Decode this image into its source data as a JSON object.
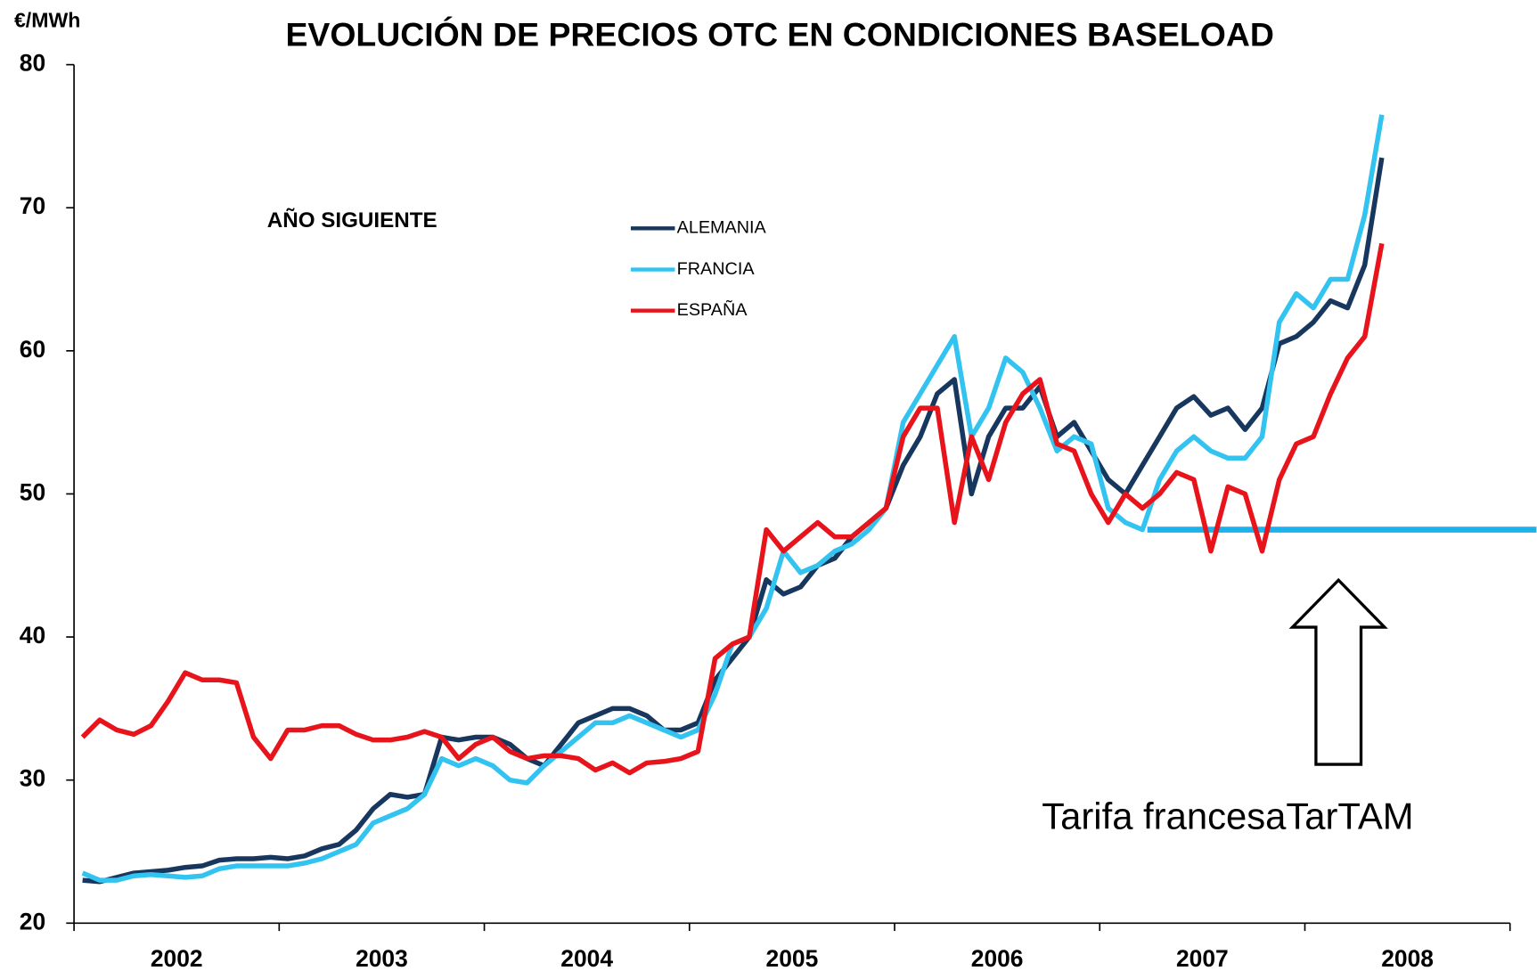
{
  "chart_data": {
    "type": "line",
    "title": "EVOLUCIÓN DE PRECIOS OTC EN CONDICIONES BASELOAD",
    "subtitle": "AÑO SIGUIENTE",
    "y_label": "€/MWh",
    "categories": [
      null,
      null,
      null,
      null,
      null,
      "2002",
      null,
      null,
      null,
      null,
      null,
      null,
      null,
      null,
      null,
      null,
      null,
      "2003",
      null,
      null,
      null,
      null,
      null,
      null,
      null,
      null,
      null,
      null,
      null,
      "2004",
      null,
      null,
      null,
      null,
      null,
      null,
      null,
      null,
      null,
      null,
      null,
      "2005",
      null,
      null,
      null,
      null,
      null,
      null,
      null,
      null,
      null,
      null,
      null,
      "2006",
      null,
      null,
      null,
      null,
      null,
      null,
      null,
      null,
      null,
      null,
      null,
      "2007",
      null,
      null,
      null,
      null,
      null,
      null,
      null,
      null,
      null,
      null,
      null,
      "2008",
      null,
      null,
      null,
      null,
      null,
      null
    ],
    "series": [
      {
        "name": "ALEMANIA",
        "color": "#17375e",
        "values": [
          23,
          22.9,
          23.2,
          23.5,
          23.6,
          23.7,
          23.9,
          24,
          24.4,
          24.5,
          24.5,
          24.6,
          24.5,
          24.7,
          25.2,
          25.5,
          26.5,
          28,
          29,
          28.8,
          29,
          33,
          32.8,
          33,
          33,
          32.5,
          31.5,
          31,
          32.5,
          34,
          34.5,
          35,
          35,
          34.5,
          33.5,
          33.5,
          34,
          37,
          38.5,
          40,
          44,
          43,
          43.5,
          45,
          45.5,
          47,
          48,
          49,
          52,
          54,
          57,
          58,
          50,
          54,
          56,
          56,
          57.5,
          54,
          55,
          53,
          51,
          50,
          52,
          54,
          56,
          56.8,
          55.5,
          56,
          54.5,
          56,
          60.5,
          61,
          62,
          63.5,
          63,
          66,
          73.5,
          null,
          null,
          null,
          null,
          null,
          null,
          null
        ]
      },
      {
        "name": "FRANCIA",
        "color": "#33c3f0",
        "values": [
          23.5,
          23,
          23,
          23.3,
          23.4,
          23.3,
          23.2,
          23.3,
          23.8,
          24,
          24,
          24,
          24,
          24.2,
          24.5,
          25,
          25.5,
          27,
          27.5,
          28,
          29,
          31.5,
          31,
          31.5,
          31,
          30,
          29.8,
          31,
          32,
          33,
          34,
          34,
          34.5,
          34,
          33.5,
          33,
          33.5,
          36,
          39.5,
          40,
          42,
          46,
          44.5,
          45,
          46,
          46.5,
          47.5,
          49,
          55,
          57,
          59,
          61,
          54,
          56,
          59.5,
          58.5,
          56,
          53,
          54,
          53.5,
          49,
          48,
          47.5,
          51,
          53,
          54,
          53,
          52.5,
          52.5,
          54,
          62,
          64,
          63,
          65,
          65,
          69.5,
          76.5,
          null,
          null,
          null,
          null,
          null,
          null,
          null
        ]
      },
      {
        "name": "ESPAÑA",
        "color": "#e8141c",
        "values": [
          33,
          34.2,
          33.5,
          33.2,
          33.8,
          35.5,
          37.5,
          37,
          37,
          36.8,
          33,
          31.5,
          33.5,
          33.5,
          33.8,
          33.8,
          33.2,
          32.8,
          32.8,
          33,
          33.4,
          33,
          31.5,
          32.5,
          33,
          32,
          31.5,
          31.7,
          31.7,
          31.5,
          30.7,
          31.2,
          30.5,
          31.2,
          31.3,
          31.5,
          32,
          38.5,
          39.5,
          40,
          47.5,
          46,
          47,
          48,
          47,
          47,
          48,
          49,
          54,
          56,
          56,
          48,
          54,
          51,
          55,
          57,
          58,
          53.5,
          53,
          50,
          48,
          50,
          49,
          50,
          51.5,
          51,
          46,
          50.5,
          50,
          46,
          51,
          53.5,
          54,
          57,
          59.5,
          61,
          67.5,
          null,
          null,
          null,
          null,
          null,
          null,
          null
        ]
      }
    ],
    "ylim": [
      20,
      80
    ],
    "yticks": [
      20,
      30,
      40,
      50,
      60,
      70,
      80
    ],
    "grid": false,
    "legend": "upper center",
    "reference_line": {
      "value": 47.5,
      "color": "#1cb0ec",
      "label": "Tarifa francesaTarTAM"
    }
  }
}
